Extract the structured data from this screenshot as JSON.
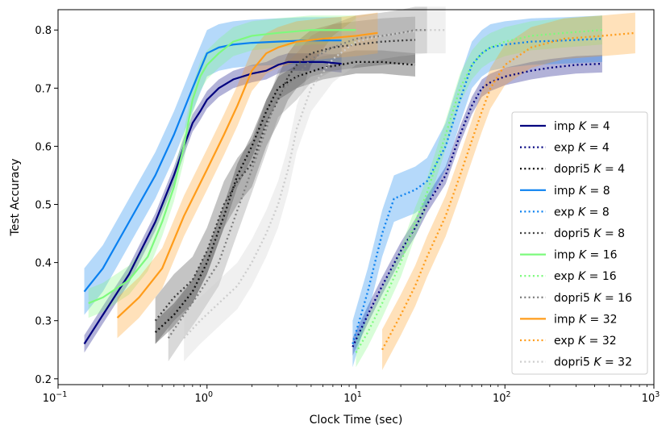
{
  "chart_data": {
    "type": "line",
    "title": "",
    "xlabel": "Clock Time (sec)",
    "ylabel": "Test Accuracy",
    "xscale": "log",
    "xlim": [
      0.1,
      1000
    ],
    "ylim": [
      0.19,
      0.835
    ],
    "x_ticks": [
      {
        "value": 0.1,
        "base": "10",
        "exp": "−1"
      },
      {
        "value": 1,
        "base": "10",
        "exp": "0"
      },
      {
        "value": 10,
        "base": "10",
        "exp": "1"
      },
      {
        "value": 100,
        "base": "10",
        "exp": "2"
      },
      {
        "value": 1000,
        "base": "10",
        "exp": "3"
      }
    ],
    "y_ticks": [
      "0.2",
      "0.3",
      "0.4",
      "0.5",
      "0.6",
      "0.7",
      "0.8"
    ],
    "legend_position": "lower-right",
    "series": [
      {
        "name": "imp K = 4",
        "method": "imp",
        "k": "4",
        "color": "#00007f",
        "dash": "solid",
        "band": 0.015,
        "x": [
          0.15,
          0.2,
          0.3,
          0.45,
          0.6,
          0.7,
          0.8,
          0.9,
          1.0,
          1.2,
          1.5,
          2.0,
          2.5,
          3.0,
          3.5,
          4.5,
          6,
          8
        ],
        "y": [
          0.26,
          0.31,
          0.38,
          0.47,
          0.55,
          0.6,
          0.64,
          0.66,
          0.68,
          0.7,
          0.715,
          0.725,
          0.73,
          0.74,
          0.745,
          0.745,
          0.745,
          0.742
        ]
      },
      {
        "name": "exp K = 4",
        "method": "exp",
        "k": "4",
        "color": "#00007f",
        "dash": "dot",
        "band": 0.015,
        "x": [
          9.5,
          12,
          15,
          20,
          25,
          30,
          40,
          50,
          60,
          70,
          80,
          100,
          150,
          200,
          300,
          450
        ],
        "y": [
          0.255,
          0.31,
          0.36,
          0.42,
          0.46,
          0.5,
          0.55,
          0.62,
          0.67,
          0.7,
          0.71,
          0.72,
          0.73,
          0.735,
          0.74,
          0.742
        ]
      },
      {
        "name": "dopri5 K = 4",
        "method": "dopri5",
        "k": "4",
        "color": "#111111",
        "dash": "dot",
        "band": 0.02,
        "x": [
          0.45,
          0.6,
          0.8,
          1.0,
          1.3,
          1.6,
          2.0,
          2.5,
          3.0,
          4.0,
          6.0,
          10,
          15,
          20,
          25
        ],
        "y": [
          0.28,
          0.31,
          0.35,
          0.4,
          0.48,
          0.55,
          0.6,
          0.66,
          0.7,
          0.72,
          0.735,
          0.745,
          0.745,
          0.742,
          0.74
        ]
      },
      {
        "name": "imp K = 8",
        "method": "imp",
        "k": "8",
        "color": "#0a80f0",
        "dash": "solid",
        "band": 0.04,
        "x": [
          0.15,
          0.2,
          0.3,
          0.45,
          0.6,
          0.8,
          1.0,
          1.2,
          1.5,
          2.0,
          3.0,
          4.5,
          6,
          8
        ],
        "y": [
          0.35,
          0.39,
          0.47,
          0.55,
          0.62,
          0.7,
          0.76,
          0.77,
          0.775,
          0.778,
          0.78,
          0.782,
          0.782,
          0.782
        ]
      },
      {
        "name": "exp K = 8",
        "method": "exp",
        "k": "8",
        "color": "#0a80f0",
        "dash": "dot",
        "band": 0.04,
        "x": [
          9.5,
          12,
          15,
          18,
          25,
          30,
          40,
          50,
          60,
          70,
          80,
          100,
          150,
          250,
          450
        ],
        "y": [
          0.26,
          0.35,
          0.45,
          0.51,
          0.525,
          0.54,
          0.6,
          0.68,
          0.74,
          0.76,
          0.77,
          0.775,
          0.78,
          0.782,
          0.785
        ]
      },
      {
        "name": "dopri5 K = 8",
        "method": "dopri5",
        "k": "8",
        "color": "#3d3d3d",
        "dash": "dot",
        "band": 0.04,
        "x": [
          0.45,
          0.6,
          0.8,
          1.0,
          1.3,
          1.6,
          2.0,
          2.5,
          3.0,
          3.5,
          4.0,
          5.0,
          7.0,
          10,
          15,
          20,
          25
        ],
        "y": [
          0.3,
          0.34,
          0.37,
          0.42,
          0.5,
          0.54,
          0.57,
          0.64,
          0.68,
          0.72,
          0.74,
          0.76,
          0.77,
          0.775,
          0.78,
          0.782,
          0.783
        ]
      },
      {
        "name": "imp K = 16",
        "method": "imp",
        "k": "16",
        "color": "#7dfa7d",
        "dash": "solid",
        "band": 0.025,
        "x": [
          0.16,
          0.2,
          0.3,
          0.4,
          0.5,
          0.6,
          0.7,
          0.8,
          0.9,
          1.0,
          1.2,
          1.5,
          2.0,
          3.0,
          5.0,
          8.0,
          10
        ],
        "y": [
          0.33,
          0.34,
          0.37,
          0.41,
          0.47,
          0.53,
          0.6,
          0.68,
          0.72,
          0.74,
          0.76,
          0.78,
          0.79,
          0.795,
          0.8,
          0.8,
          0.8
        ]
      },
      {
        "name": "exp K = 16",
        "method": "exp",
        "k": "16",
        "color": "#7dfa7d",
        "dash": "dot",
        "band": 0.025,
        "x": [
          10,
          12,
          15,
          20,
          25,
          30,
          40,
          50,
          60,
          70,
          80,
          100,
          150,
          250,
          450
        ],
        "y": [
          0.245,
          0.28,
          0.33,
          0.4,
          0.47,
          0.52,
          0.62,
          0.7,
          0.74,
          0.76,
          0.77,
          0.78,
          0.79,
          0.795,
          0.8
        ]
      },
      {
        "name": "dopri5 K = 16",
        "method": "dopri5",
        "k": "16",
        "color": "#808080",
        "dash": "dot",
        "band": 0.04,
        "x": [
          0.55,
          0.7,
          0.9,
          1.2,
          1.5,
          2.0,
          2.5,
          3.0,
          4.0,
          5.0,
          7.0,
          10,
          15,
          20,
          25,
          30
        ],
        "y": [
          0.27,
          0.31,
          0.35,
          0.4,
          0.47,
          0.56,
          0.63,
          0.69,
          0.72,
          0.75,
          0.77,
          0.785,
          0.79,
          0.795,
          0.8,
          0.8
        ]
      },
      {
        "name": "imp K = 32",
        "method": "imp",
        "k": "32",
        "color": "#ff9c1a",
        "dash": "solid",
        "band": 0.035,
        "x": [
          0.25,
          0.35,
          0.5,
          0.7,
          1.0,
          1.3,
          1.6,
          2.0,
          2.5,
          3.0,
          4.0,
          6.0,
          10,
          14
        ],
        "y": [
          0.305,
          0.34,
          0.39,
          0.48,
          0.56,
          0.62,
          0.67,
          0.73,
          0.76,
          0.77,
          0.78,
          0.785,
          0.79,
          0.795
        ]
      },
      {
        "name": "exp K = 32",
        "method": "exp",
        "k": "32",
        "color": "#ff9c1a",
        "dash": "dot",
        "band": 0.035,
        "x": [
          15,
          20,
          25,
          30,
          40,
          50,
          60,
          70,
          80,
          100,
          150,
          250,
          450,
          750
        ],
        "y": [
          0.25,
          0.31,
          0.36,
          0.41,
          0.48,
          0.55,
          0.61,
          0.66,
          0.7,
          0.74,
          0.77,
          0.785,
          0.79,
          0.795
        ]
      },
      {
        "name": "dopri5 K = 32",
        "method": "dopri5",
        "k": "32",
        "color": "#cccccc",
        "dash": "dot",
        "band": 0.04,
        "x": [
          0.7,
          0.9,
          1.2,
          1.6,
          2.0,
          2.5,
          3.0,
          3.5,
          4.0,
          5.0,
          7.0,
          10,
          15,
          20,
          30,
          40
        ],
        "y": [
          0.27,
          0.3,
          0.33,
          0.36,
          0.4,
          0.45,
          0.5,
          0.56,
          0.63,
          0.7,
          0.75,
          0.78,
          0.79,
          0.795,
          0.8,
          0.8
        ]
      }
    ]
  }
}
